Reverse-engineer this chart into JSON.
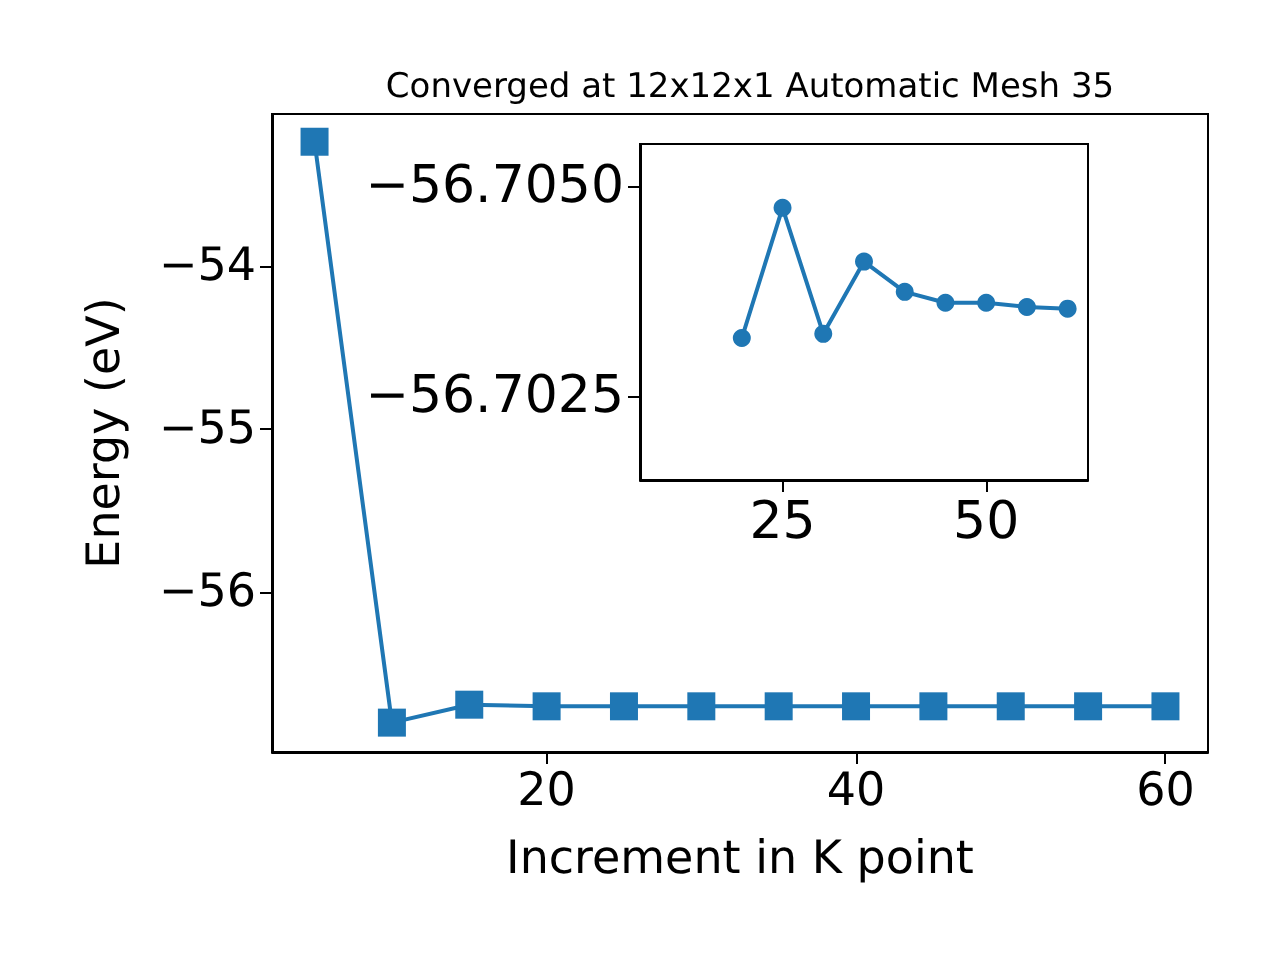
{
  "chart_data": [
    {
      "type": "line",
      "title": "Converged at 12x12x1 Automatic Mesh 35",
      "xlabel": "Increment in K point",
      "ylabel": "Energy (eV)",
      "x": [
        5,
        10,
        15,
        20,
        25,
        30,
        35,
        40,
        45,
        50,
        55,
        60
      ],
      "series": [
        {
          "color": "#1f77b4",
          "values": [
            -53.24,
            -56.8,
            -56.69,
            -56.7,
            -56.7,
            -56.7,
            -56.7,
            -56.7,
            -56.7,
            -56.7,
            -56.7,
            -56.7
          ]
        }
      ],
      "xlim": [
        2.25,
        62.75
      ],
      "xticks": [
        20,
        40,
        60
      ],
      "ylim": [
        -56.98,
        -53.07
      ],
      "yticks": [
        -56,
        -55,
        -54
      ],
      "marker": "square",
      "line_style": "solid"
    },
    {
      "type": "line",
      "x": [
        20,
        25,
        30,
        35,
        40,
        45,
        50,
        55,
        60
      ],
      "series": [
        {
          "color": "#1f77b4",
          "values": [
            -56.70319,
            -56.70474,
            -56.70324,
            -56.7041,
            -56.70374,
            -56.70361,
            -56.70361,
            -56.70356,
            -56.70354
          ]
        }
      ],
      "xlim": [
        7.5,
        62.5
      ],
      "xticks": [
        25,
        50
      ],
      "ylim": [
        -56.7015,
        -56.7055
      ],
      "yticks": [
        {
          "value": -56.7025,
          "label": "−56.7025"
        },
        {
          "value": -56.705,
          "label": "−56.7050"
        }
      ],
      "marker": "circle",
      "line_style": "solid"
    }
  ]
}
